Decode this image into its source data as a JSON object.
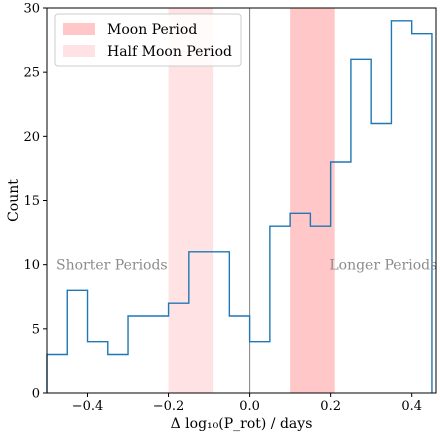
{
  "chart_data": {
    "type": "histogram-step",
    "xlabel": "Δ log₁₀(P_rot) / days",
    "ylabel": "Count",
    "xlim": [
      -0.5,
      0.46
    ],
    "ylim": [
      0,
      30
    ],
    "xticks": [
      -0.4,
      -0.2,
      0.0,
      0.2,
      0.4
    ],
    "xtick_labels": [
      "−0.4",
      "−0.2",
      "0.0",
      "0.2",
      "0.4"
    ],
    "yticks": [
      0,
      5,
      10,
      15,
      20,
      25,
      30
    ],
    "ytick_labels": [
      "0",
      "5",
      "10",
      "15",
      "20",
      "25",
      "30"
    ],
    "bin_edges": [
      -0.5,
      -0.45,
      -0.4,
      -0.35,
      -0.3,
      -0.25,
      -0.2,
      -0.15,
      -0.1,
      -0.05,
      0.0,
      0.05,
      0.1,
      0.15,
      0.2,
      0.25,
      0.3,
      0.35,
      0.4,
      0.45
    ],
    "counts": [
      3,
      8,
      4,
      3,
      6,
      6,
      7,
      11,
      11,
      6,
      4,
      13,
      14,
      13,
      18,
      26,
      21,
      29,
      28
    ],
    "line_color": "#1f77b4",
    "vline_x": 0.0,
    "vline_color": "#808080",
    "bands": [
      {
        "name": "Moon Period",
        "x0": 0.1,
        "x1": 0.21,
        "color": "#ffc7c8"
      },
      {
        "name": "Half Moon Period",
        "x0": -0.2,
        "x1": -0.09,
        "color": "#ffe3e4"
      }
    ],
    "annotations": [
      {
        "text": "Shorter Periods",
        "x": -0.34,
        "y": 10
      },
      {
        "text": "Longer Periods",
        "x": 0.33,
        "y": 10
      }
    ],
    "legend": {
      "placement": "top-left",
      "entries": [
        "Moon Period",
        "Half Moon Period"
      ]
    }
  }
}
